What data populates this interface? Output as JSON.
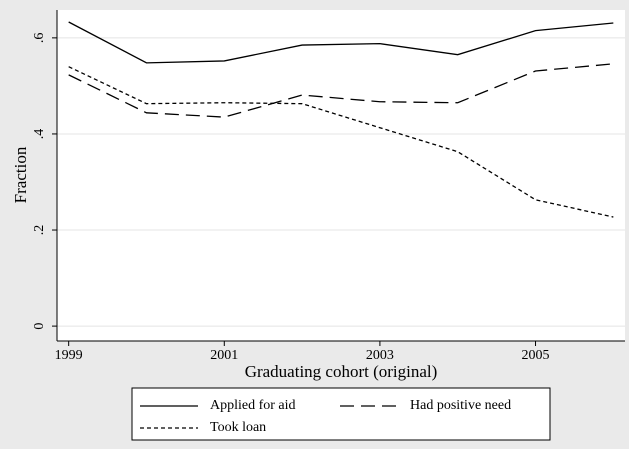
{
  "chart_data": {
    "type": "line",
    "xlabel": "Graduating cohort (original)",
    "ylabel": "Fraction",
    "x": [
      1999,
      2000,
      2001,
      2002,
      2003,
      2004,
      2005,
      2006
    ],
    "series": [
      {
        "name": "Applied for aid",
        "color": "#000000",
        "dash": "solid",
        "values": [
          0.633,
          0.548,
          0.552,
          0.585,
          0.588,
          0.565,
          0.615,
          0.631
        ]
      },
      {
        "name": "Had positive need",
        "color": "#000000",
        "dash": "long",
        "values": [
          0.523,
          0.444,
          0.435,
          0.481,
          0.467,
          0.465,
          0.531,
          0.546
        ]
      },
      {
        "name": "Took loan",
        "color": "#000000",
        "dash": "short",
        "values": [
          0.54,
          0.463,
          0.465,
          0.463,
          0.413,
          0.363,
          0.263,
          0.227
        ]
      }
    ],
    "xlim": [
      1998.85,
      2006.15
    ],
    "xticks": [
      1999,
      2001,
      2003,
      2005
    ],
    "ylim": [
      -0.031,
      0.658
    ],
    "yticks": [
      {
        "value": 0,
        "label": "0"
      },
      {
        "value": 0.2,
        "label": ".2"
      },
      {
        "value": 0.4,
        "label": ".4"
      },
      {
        "value": 0.6,
        "label": ".6"
      }
    ],
    "grid": true,
    "legend": "bottom"
  }
}
